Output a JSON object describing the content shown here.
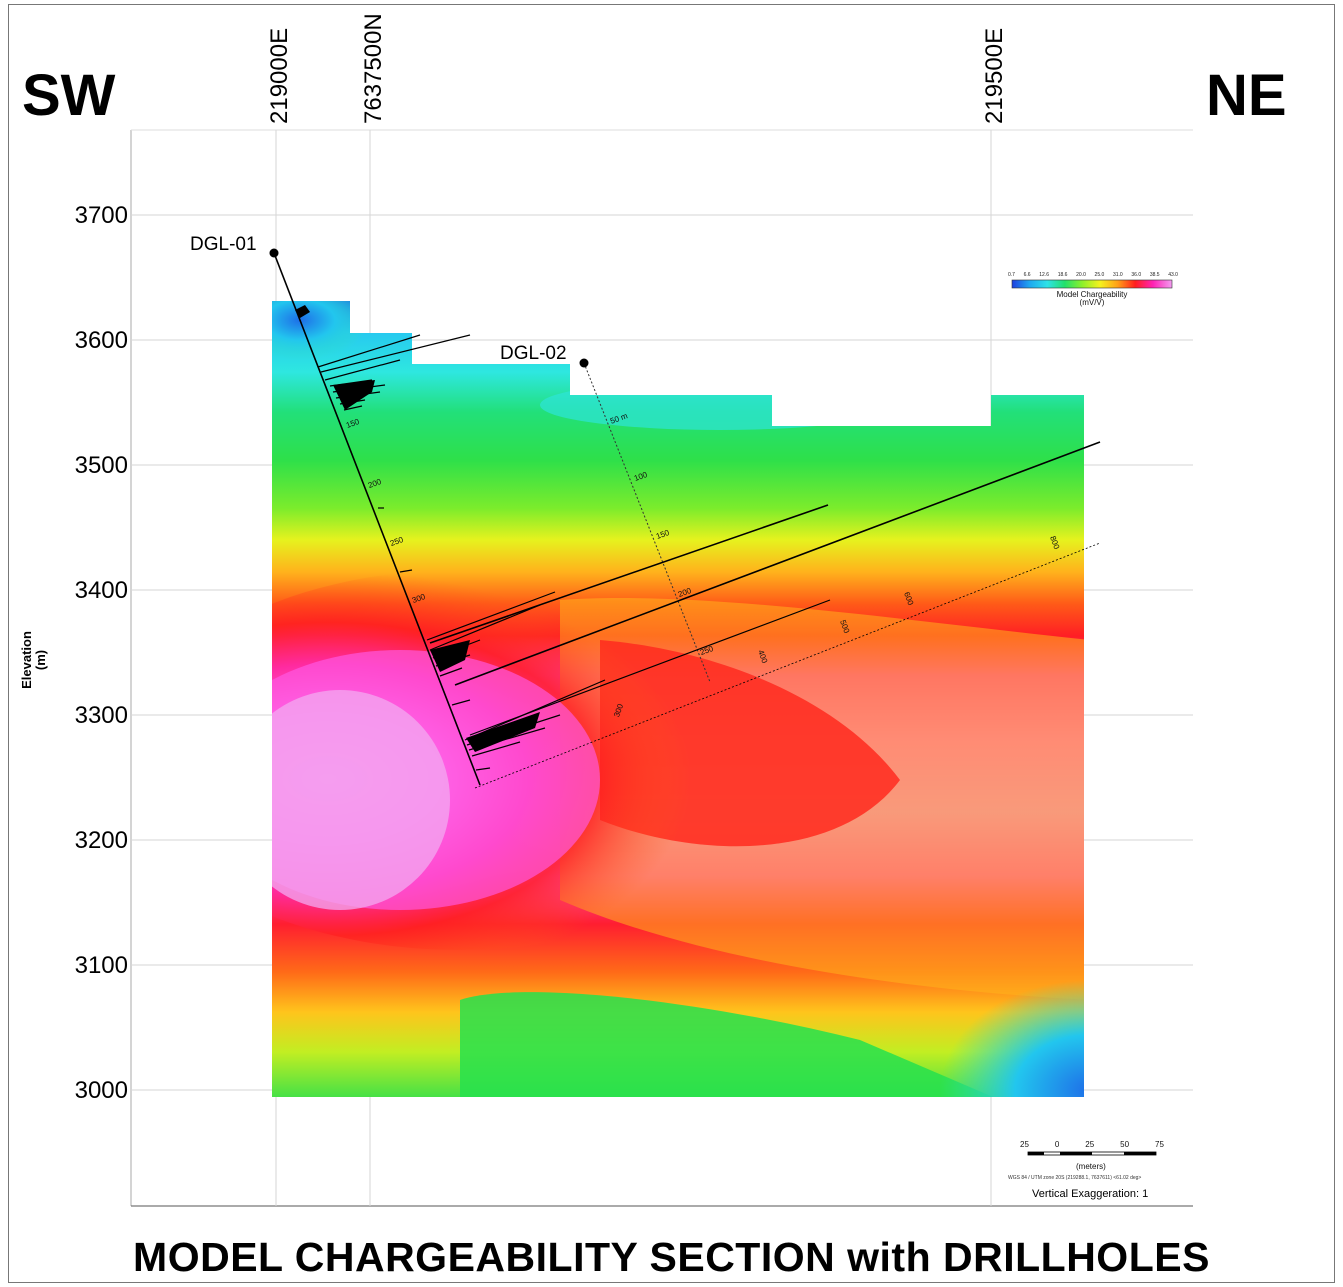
{
  "title": "MODEL CHARGEABILITY SECTION with DRILLHOLES",
  "direction_left": "SW",
  "direction_right": "NE",
  "coordinates": [
    "219000E",
    "7637500N",
    "219500E"
  ],
  "y_axis": {
    "label_line1": "Elevation",
    "label_line2": "(m)",
    "ticks": [
      "3700",
      "3600",
      "3500",
      "3400",
      "3300",
      "3200",
      "3100",
      "3000"
    ]
  },
  "drillholes": [
    {
      "name": "DGL-01",
      "depth_labels": [
        "150",
        "200",
        "250",
        "300"
      ]
    },
    {
      "name": "DGL-02",
      "depth_labels": [
        "50 m",
        "100",
        "150",
        "200",
        "250",
        "300"
      ]
    }
  ],
  "section_labels": [
    "400",
    "500",
    "600",
    "800"
  ],
  "legend": {
    "title_line1": "Model Chargeability",
    "title_line2": "(mV/V)",
    "ticks": [
      "0.7",
      "6.6",
      "12.6",
      "18.6",
      "20.0",
      "25.0",
      "31.0",
      "36.0",
      "38.5",
      "43.0"
    ],
    "colors": [
      "#1f3fe0",
      "#1ea8f0",
      "#2ee2e8",
      "#23e06a",
      "#8ef02a",
      "#f5f21e",
      "#ffa018",
      "#ff1e1e",
      "#ff22b4",
      "#f29cf0"
    ]
  },
  "scale_bar": {
    "ticks": [
      "25",
      "0",
      "25",
      "50",
      "75"
    ],
    "unit": "(meters)"
  },
  "projection": "WGS 84 / UTM zone 20S (219288.1, 7637611) <61.02 deg>",
  "vertical_exaggeration": "Vertical Exaggeration: 1"
}
